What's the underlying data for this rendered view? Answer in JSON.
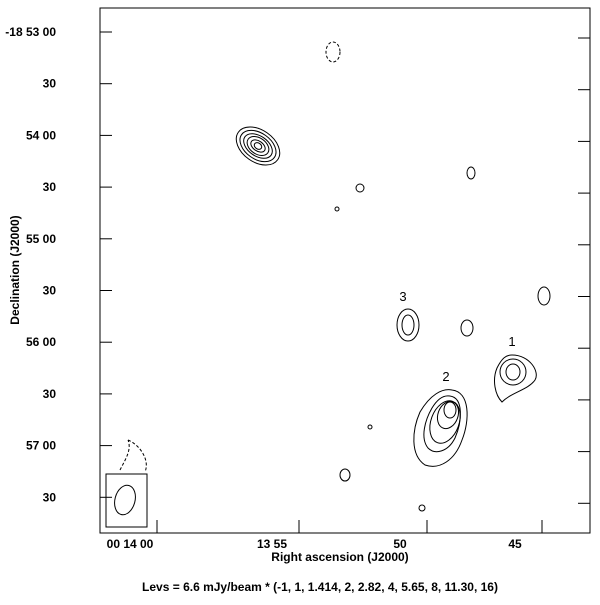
{
  "axes": {
    "y_label": "Declination (J2000)",
    "x_label": "Right ascension (J2000)",
    "y_ticks": [
      "-18 53 00",
      "30",
      "54 00",
      "30",
      "55 00",
      "30",
      "56 00",
      "30",
      "57 00",
      "30"
    ],
    "x_ticks": [
      "00 14 00",
      "13 55",
      "50",
      "45"
    ]
  },
  "source_labels": [
    "1",
    "2",
    "3"
  ],
  "caption": "Levs = 6.6 mJy/beam * (-1, 1, 1.414, 2, 2.82, 4, 5.65, 8, 11.30, 16)"
}
